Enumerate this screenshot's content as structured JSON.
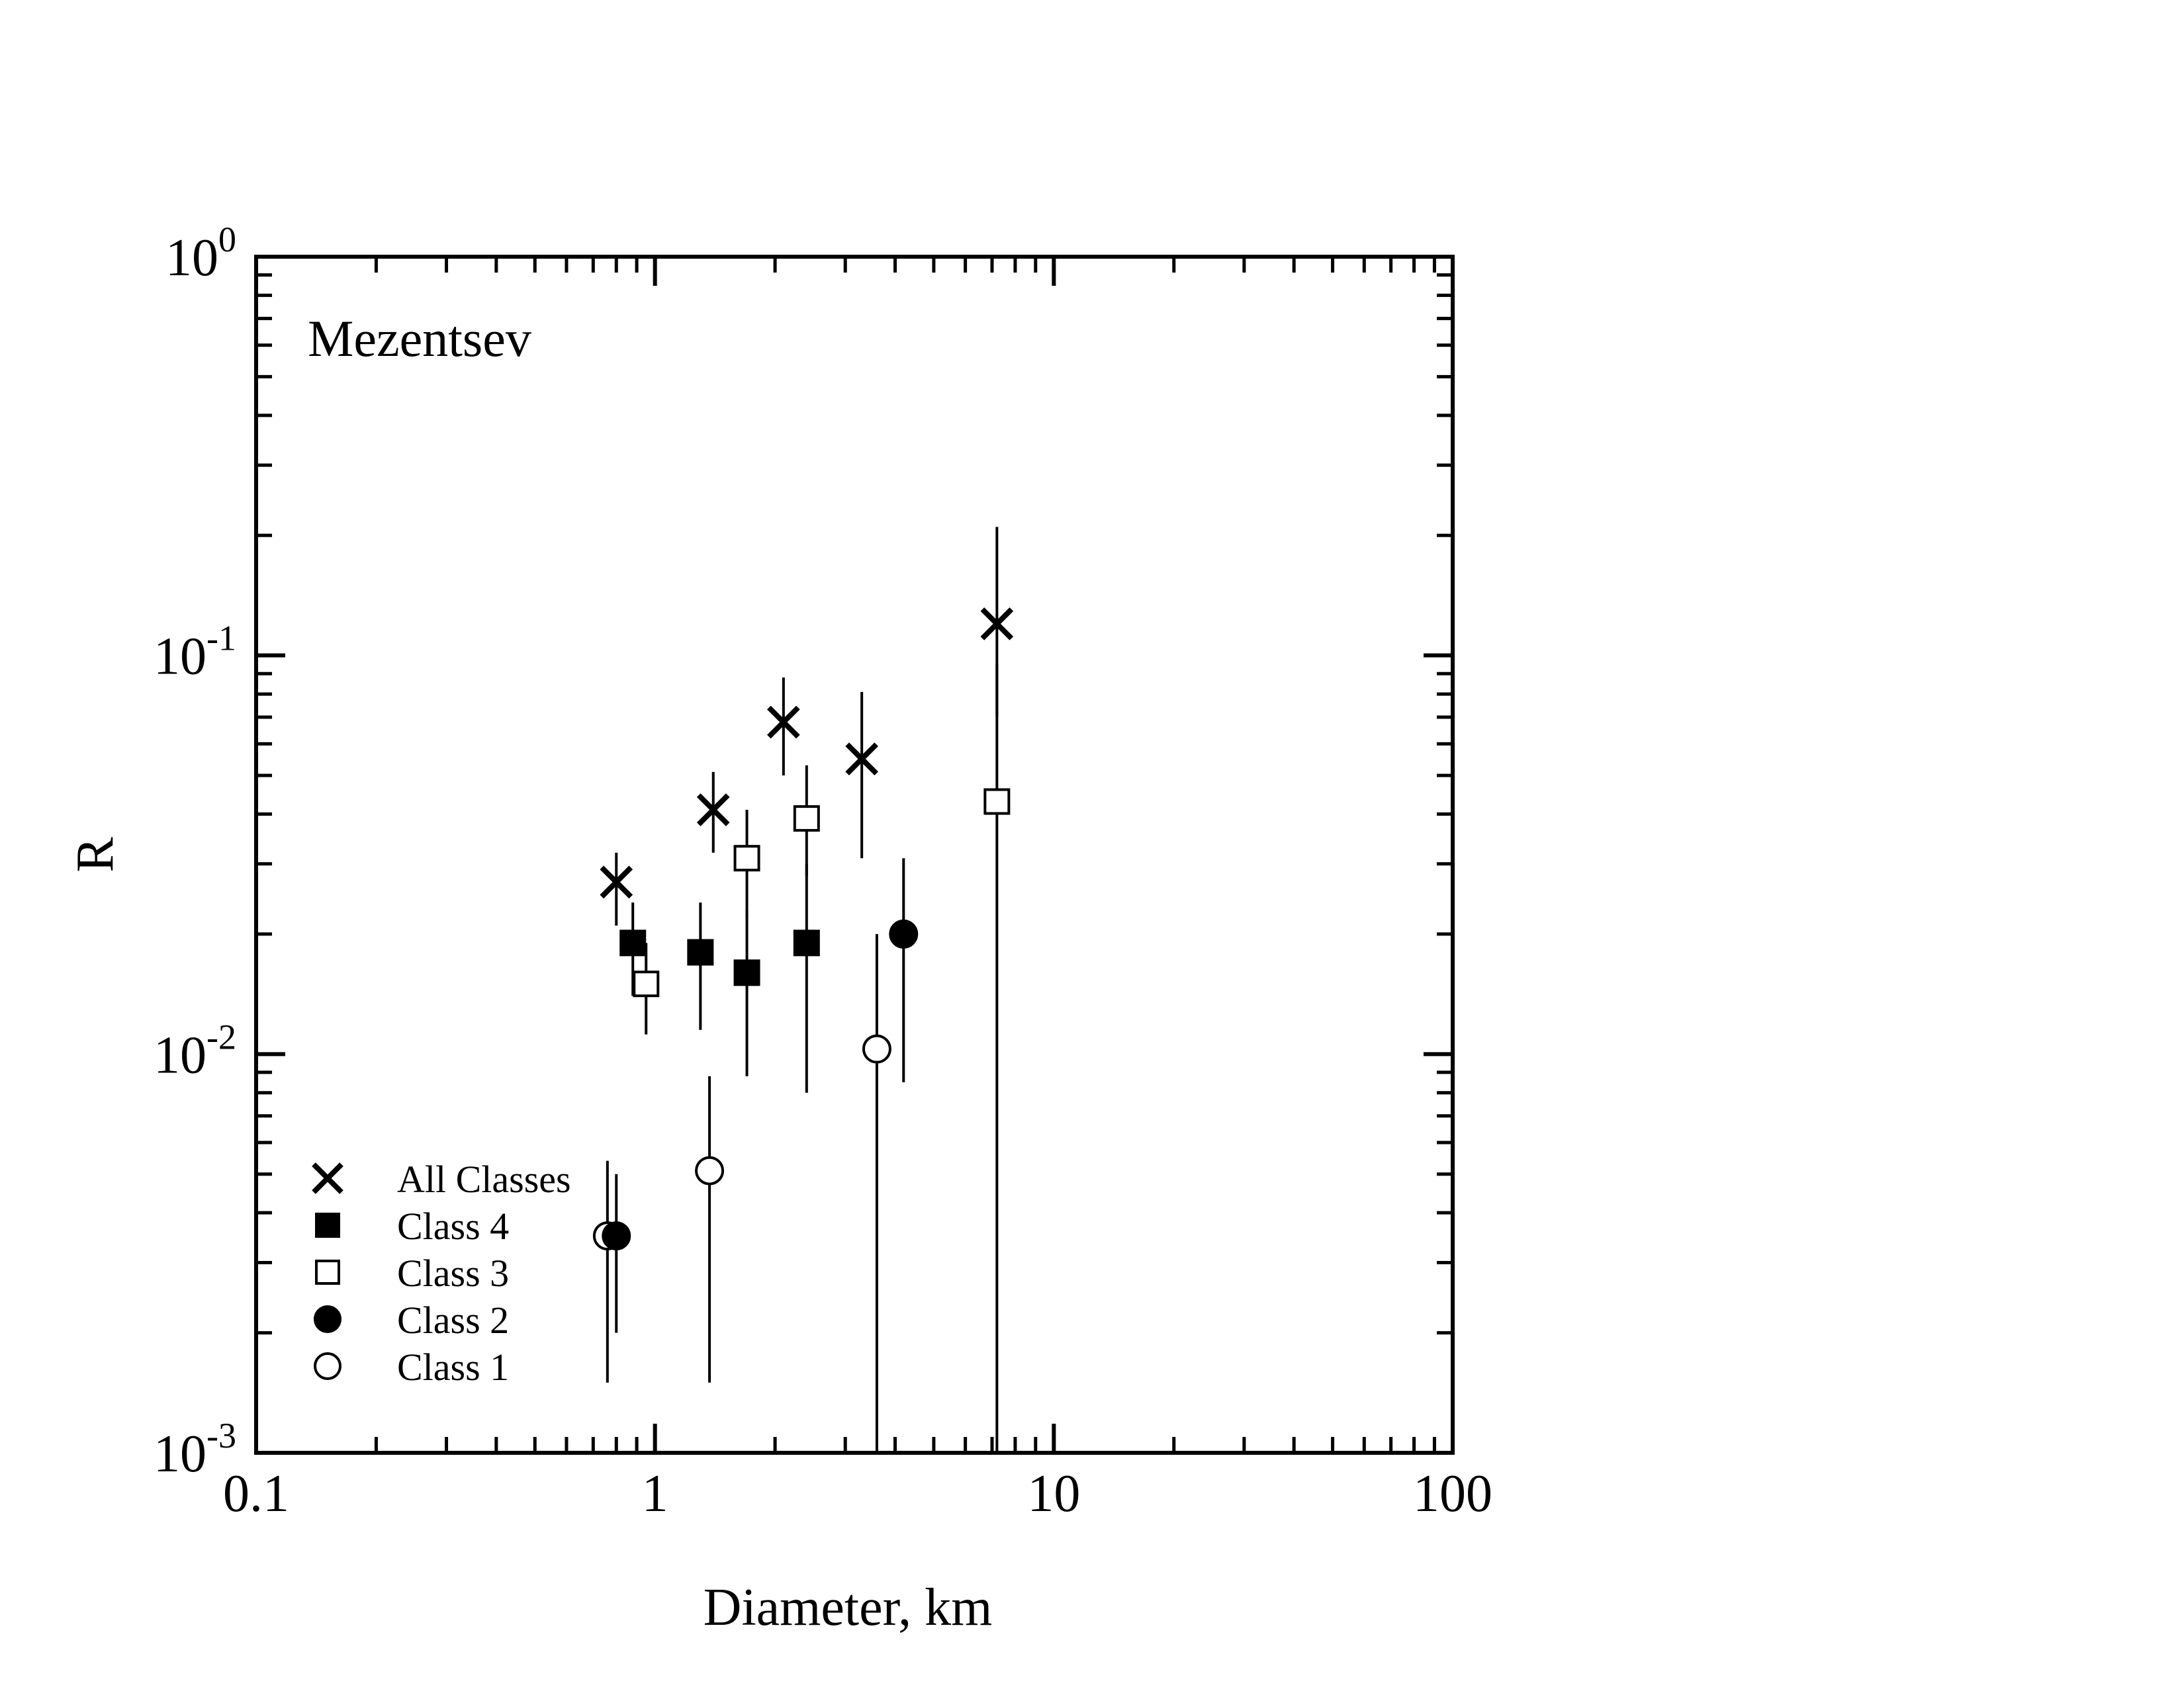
{
  "chart_data": {
    "type": "scatter",
    "title": "Mezentsev",
    "xlabel": "Diameter, km",
    "ylabel": "R",
    "x_scale": "log",
    "y_scale": "log",
    "xlim": [
      0.1,
      100
    ],
    "ylim": [
      0.001,
      1
    ],
    "x_ticks": [
      {
        "value": 0.1,
        "label": "0.1"
      },
      {
        "value": 1,
        "label": "1"
      },
      {
        "value": 10,
        "label": "10"
      },
      {
        "value": 100,
        "label": "100"
      }
    ],
    "y_ticks": [
      {
        "value": 0.001,
        "base": "10",
        "exp": "-3"
      },
      {
        "value": 0.01,
        "base": "10",
        "exp": "-2"
      },
      {
        "value": 0.1,
        "base": "10",
        "exp": "-1"
      },
      {
        "value": 1,
        "base": "10",
        "exp": "0"
      }
    ],
    "legend_position": "bottom-left",
    "series": [
      {
        "name": "All Classes",
        "marker": "x",
        "points": [
          {
            "x": 0.8,
            "y": 0.027,
            "ylo": 0.021,
            "yhi": 0.032
          },
          {
            "x": 1.4,
            "y": 0.041,
            "ylo": 0.032,
            "yhi": 0.051
          },
          {
            "x": 2.1,
            "y": 0.068,
            "ylo": 0.05,
            "yhi": 0.088
          },
          {
            "x": 3.3,
            "y": 0.055,
            "ylo": 0.031,
            "yhi": 0.081
          },
          {
            "x": 7.2,
            "y": 0.12,
            "ylo": 0.07,
            "yhi": 0.21
          }
        ]
      },
      {
        "name": "Class 4",
        "marker": "square-filled",
        "points": [
          {
            "x": 0.88,
            "y": 0.019,
            "ylo": 0.014,
            "yhi": 0.024
          },
          {
            "x": 1.3,
            "y": 0.018,
            "ylo": 0.0115,
            "yhi": 0.024
          },
          {
            "x": 1.7,
            "y": 0.016,
            "ylo": 0.0088,
            "yhi": 0.023
          },
          {
            "x": 2.4,
            "y": 0.019,
            "ylo": 0.008,
            "yhi": 0.03
          }
        ]
      },
      {
        "name": "Class 3",
        "marker": "square-open",
        "points": [
          {
            "x": 0.95,
            "y": 0.015,
            "ylo": 0.0112,
            "yhi": 0.019
          },
          {
            "x": 1.7,
            "y": 0.031,
            "ylo": 0.022,
            "yhi": 0.041
          },
          {
            "x": 2.4,
            "y": 0.039,
            "ylo": 0.028,
            "yhi": 0.053
          },
          {
            "x": 7.2,
            "y": 0.043,
            "ylo": 0.001,
            "yhi": 0.095
          }
        ]
      },
      {
        "name": "Class 2",
        "marker": "circle-filled",
        "points": [
          {
            "x": 0.8,
            "y": 0.0035,
            "ylo": 0.002,
            "yhi": 0.005
          },
          {
            "x": 4.2,
            "y": 0.02,
            "ylo": 0.0085,
            "yhi": 0.031
          }
        ]
      },
      {
        "name": "Class 1",
        "marker": "circle-open",
        "points": [
          {
            "x": 0.76,
            "y": 0.0035,
            "ylo": 0.0015,
            "yhi": 0.0054
          },
          {
            "x": 1.37,
            "y": 0.0051,
            "ylo": 0.0015,
            "yhi": 0.0088
          },
          {
            "x": 3.6,
            "y": 0.0103,
            "ylo": 0.001,
            "yhi": 0.02
          }
        ]
      }
    ]
  }
}
